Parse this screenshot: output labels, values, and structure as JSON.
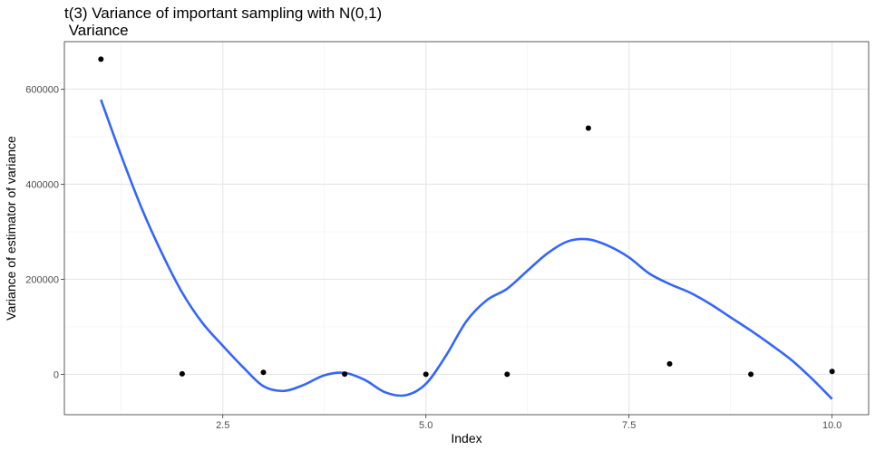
{
  "chart_data": {
    "type": "scatter",
    "title": "t(3) Variance of important sampling with N(0,1)",
    "subtitle": " Variance",
    "xlabel": "Index",
    "ylabel": "Variance of estimator of variance",
    "xlim": [
      0.55,
      10.45
    ],
    "ylim": [
      -85000,
      700000
    ],
    "x_ticks": [
      2.5,
      5.0,
      7.5,
      10.0
    ],
    "x_tick_labels": [
      "2.5",
      "5.0",
      "7.5",
      "10.0"
    ],
    "y_ticks": [
      0,
      200000,
      400000,
      600000
    ],
    "y_tick_labels": [
      "0",
      "200000",
      "400000",
      "600000"
    ],
    "grid": true,
    "series": [
      {
        "type": "points",
        "color": "#000000",
        "x": [
          1,
          2,
          3,
          4,
          5,
          6,
          7,
          8,
          9,
          10
        ],
        "y": [
          663000,
          1000,
          4000,
          500,
          0,
          0,
          518000,
          22000,
          0,
          6000
        ]
      },
      {
        "type": "smooth",
        "color": "#3366FF",
        "x": [
          1.0,
          1.25,
          1.5,
          1.75,
          2.0,
          2.25,
          2.5,
          2.75,
          3.0,
          3.25,
          3.5,
          3.75,
          4.0,
          4.25,
          4.5,
          4.75,
          5.0,
          5.25,
          5.5,
          5.75,
          6.0,
          6.25,
          6.5,
          6.75,
          7.0,
          7.25,
          7.5,
          7.75,
          8.0,
          8.25,
          8.5,
          8.75,
          9.0,
          9.25,
          9.5,
          9.75,
          10.0
        ],
        "y": [
          578000,
          460000,
          350000,
          255000,
          172000,
          108000,
          60000,
          15000,
          -25000,
          -35000,
          -22000,
          -2000,
          3000,
          -12000,
          -38000,
          -44000,
          -20000,
          40000,
          112000,
          156000,
          180000,
          218000,
          255000,
          280000,
          284000,
          270000,
          246000,
          212000,
          190000,
          172000,
          148000,
          120000,
          92000,
          62000,
          30000,
          -9000,
          -52000
        ]
      }
    ]
  }
}
